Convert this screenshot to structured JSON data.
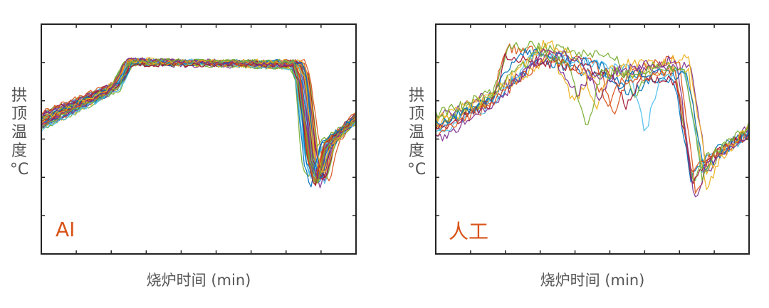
{
  "chart_data": [
    {
      "type": "line",
      "annotation": "AI",
      "annotation_color": "#d95319",
      "xlabel": "烧炉时间 (min)",
      "ylabel": "拱顶温度 °C",
      "xlim": [
        0,
        9
      ],
      "ylim": [
        0,
        6
      ],
      "x_ticks": 9,
      "y_ticks": 6,
      "grid": false,
      "legend": "none",
      "series_count": 40,
      "profile": "tight-band"
    },
    {
      "type": "line",
      "annotation": "人工",
      "annotation_color": "#d95319",
      "xlabel": "烧炉时间 (min)",
      "ylabel": "拱顶温度 °C",
      "xlim": [
        0,
        9
      ],
      "ylim": [
        0,
        6
      ],
      "x_ticks": 9,
      "y_ticks": 6,
      "grid": false,
      "legend": "none",
      "series_count": 12,
      "profile": "scattered"
    }
  ],
  "palette": [
    "#0072bd",
    "#d95319",
    "#edb120",
    "#7e2f8e",
    "#77ac30",
    "#4dbeee",
    "#a2142f"
  ]
}
